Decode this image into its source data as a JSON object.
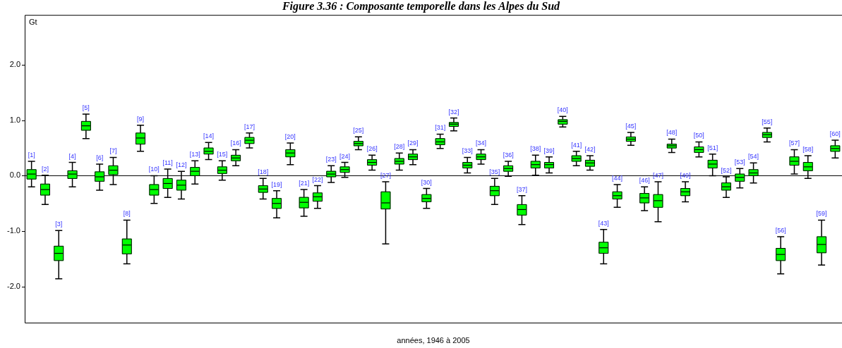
{
  "chart_data": {
    "type": "box",
    "title": "Figure 3.36 : Composante temporelle dans les Alpes du Sud",
    "xlabel": "années, 1946 à 2005",
    "ylabel": "Gt",
    "color": "#00ff00",
    "categories": [
      null,
      null,
      null,
      null,
      null,
      null,
      null,
      null,
      null,
      null,
      null,
      null,
      null,
      null,
      null,
      null,
      null,
      null,
      null,
      null,
      null,
      null,
      null,
      null,
      null,
      null,
      null,
      null,
      null,
      null,
      null,
      null,
      null,
      null,
      null,
      null,
      null,
      null,
      null,
      null,
      null,
      null,
      null,
      null,
      null,
      null,
      null,
      null,
      null,
      null,
      null,
      null,
      null,
      null,
      null,
      null,
      null,
      null,
      null,
      null
    ],
    "annotations": [
      "[1]",
      "[2]",
      "[3]",
      "[4]",
      "[5]",
      "[6]",
      "[7]",
      "[8]",
      "[9]",
      "[10]",
      "[11]",
      "[12]",
      "[13]",
      "[14]",
      "[15]",
      "[16]",
      "[17]",
      "[18]",
      "[19]",
      "[20]",
      "[21]",
      "[22]",
      "[23]",
      "[24]",
      "[25]",
      "[26]",
      "[27]",
      "[28]",
      "[29]",
      "[30]",
      "[31]",
      "[32]",
      "[33]",
      "[34]",
      "[35]",
      "[36]",
      "[37]",
      "[38]",
      "[39]",
      "[40]",
      "[41]",
      "[42]",
      "[43]",
      "[44]",
      "[45]",
      "[46]",
      "[47]",
      "[48]",
      "[49]",
      "[50]",
      "[51]",
      "[52]",
      "[53]",
      "[54]",
      "[55]",
      "[56]",
      "[57]",
      "[58]",
      "[59]",
      "[60]"
    ],
    "boxes": [
      {
        "low": -0.2,
        "q1": -0.06,
        "median": 0.03,
        "q3": 0.11,
        "high": 0.26
      },
      {
        "low": -0.52,
        "q1": -0.35,
        "median": -0.25,
        "q3": -0.15,
        "high": 0.01
      },
      {
        "low": -1.86,
        "q1": -1.53,
        "median": -1.4,
        "q3": -1.27,
        "high": -0.99
      },
      {
        "low": -0.2,
        "q1": -0.05,
        "median": 0.03,
        "q3": 0.09,
        "high": 0.24
      },
      {
        "low": 0.67,
        "q1": 0.82,
        "median": 0.9,
        "q3": 0.98,
        "high": 1.11
      },
      {
        "low": -0.26,
        "q1": -0.1,
        "median": -0.02,
        "q3": 0.07,
        "high": 0.21
      },
      {
        "low": -0.16,
        "q1": 0.02,
        "median": 0.1,
        "q3": 0.18,
        "high": 0.33
      },
      {
        "low": -1.59,
        "q1": -1.41,
        "median": -1.25,
        "q3": -1.14,
        "high": -0.8
      },
      {
        "low": 0.44,
        "q1": 0.57,
        "median": 0.68,
        "q3": 0.77,
        "high": 0.91
      },
      {
        "low": -0.5,
        "q1": -0.35,
        "median": -0.25,
        "q3": -0.16,
        "high": 0.0
      },
      {
        "low": -0.39,
        "q1": -0.23,
        "median": -0.14,
        "q3": -0.05,
        "high": 0.12
      },
      {
        "low": -0.42,
        "q1": -0.26,
        "median": -0.17,
        "q3": -0.08,
        "high": 0.08
      },
      {
        "low": -0.15,
        "q1": 0.0,
        "median": 0.08,
        "q3": 0.15,
        "high": 0.27
      },
      {
        "low": 0.29,
        "q1": 0.39,
        "median": 0.44,
        "q3": 0.5,
        "high": 0.6
      },
      {
        "low": -0.08,
        "q1": 0.04,
        "median": 0.1,
        "q3": 0.16,
        "high": 0.27
      },
      {
        "low": 0.18,
        "q1": 0.27,
        "median": 0.32,
        "q3": 0.37,
        "high": 0.47
      },
      {
        "low": 0.5,
        "q1": 0.58,
        "median": 0.64,
        "q3": 0.69,
        "high": 0.77
      },
      {
        "low": -0.42,
        "q1": -0.3,
        "median": -0.24,
        "q3": -0.18,
        "high": -0.05
      },
      {
        "low": -0.76,
        "q1": -0.59,
        "median": -0.5,
        "q3": -0.41,
        "high": -0.27
      },
      {
        "low": 0.2,
        "q1": 0.34,
        "median": 0.41,
        "q3": 0.47,
        "high": 0.59
      },
      {
        "low": -0.73,
        "q1": -0.58,
        "median": -0.48,
        "q3": -0.39,
        "high": -0.25
      },
      {
        "low": -0.59,
        "q1": -0.46,
        "median": -0.38,
        "q3": -0.31,
        "high": -0.18
      },
      {
        "low": -0.12,
        "q1": -0.02,
        "median": 0.03,
        "q3": 0.08,
        "high": 0.18
      },
      {
        "low": -0.03,
        "q1": 0.06,
        "median": 0.11,
        "q3": 0.16,
        "high": 0.24
      },
      {
        "low": 0.47,
        "q1": 0.54,
        "median": 0.58,
        "q3": 0.62,
        "high": 0.7
      },
      {
        "low": 0.1,
        "q1": 0.19,
        "median": 0.24,
        "q3": 0.29,
        "high": 0.37
      },
      {
        "low": -1.23,
        "q1": -0.6,
        "median": -0.49,
        "q3": -0.29,
        "high": -0.11
      },
      {
        "low": 0.1,
        "q1": 0.21,
        "median": 0.26,
        "q3": 0.31,
        "high": 0.41
      },
      {
        "low": 0.2,
        "q1": 0.29,
        "median": 0.34,
        "q3": 0.39,
        "high": 0.47
      },
      {
        "low": -0.59,
        "q1": -0.47,
        "median": -0.41,
        "q3": -0.34,
        "high": -0.23
      },
      {
        "low": 0.49,
        "q1": 0.56,
        "median": 0.61,
        "q3": 0.67,
        "high": 0.75
      },
      {
        "low": 0.81,
        "q1": 0.89,
        "median": 0.93,
        "q3": 0.96,
        "high": 1.04
      },
      {
        "low": 0.05,
        "q1": 0.14,
        "median": 0.19,
        "q3": 0.24,
        "high": 0.33
      },
      {
        "low": 0.21,
        "q1": 0.29,
        "median": 0.34,
        "q3": 0.39,
        "high": 0.47
      },
      {
        "low": -0.52,
        "q1": -0.36,
        "median": -0.27,
        "q3": -0.19,
        "high": -0.05
      },
      {
        "low": -0.01,
        "q1": 0.08,
        "median": 0.13,
        "q3": 0.18,
        "high": 0.26
      },
      {
        "low": -0.88,
        "q1": -0.71,
        "median": -0.61,
        "q3": -0.52,
        "high": -0.36
      },
      {
        "low": 0.01,
        "q1": 0.14,
        "median": 0.2,
        "q3": 0.26,
        "high": 0.37
      },
      {
        "low": 0.05,
        "q1": 0.14,
        "median": 0.2,
        "q3": 0.24,
        "high": 0.34
      },
      {
        "low": 0.88,
        "q1": 0.93,
        "median": 0.98,
        "q3": 1.01,
        "high": 1.07
      },
      {
        "low": 0.18,
        "q1": 0.26,
        "median": 0.31,
        "q3": 0.36,
        "high": 0.44
      },
      {
        "low": 0.1,
        "q1": 0.17,
        "median": 0.23,
        "q3": 0.28,
        "high": 0.36
      },
      {
        "low": -1.59,
        "q1": -1.4,
        "median": -1.3,
        "q3": -1.2,
        "high": -0.97
      },
      {
        "low": -0.57,
        "q1": -0.42,
        "median": -0.36,
        "q3": -0.29,
        "high": -0.16
      },
      {
        "low": 0.55,
        "q1": 0.62,
        "median": 0.66,
        "q3": 0.7,
        "high": 0.78
      },
      {
        "low": -0.63,
        "q1": -0.49,
        "median": -0.4,
        "q3": -0.32,
        "high": -0.2
      },
      {
        "low": -0.83,
        "q1": -0.57,
        "median": -0.45,
        "q3": -0.34,
        "high": -0.11
      },
      {
        "low": 0.42,
        "q1": 0.5,
        "median": 0.54,
        "q3": 0.57,
        "high": 0.66
      },
      {
        "low": -0.47,
        "q1": -0.36,
        "median": -0.29,
        "q3": -0.23,
        "high": -0.11
      },
      {
        "low": 0.34,
        "q1": 0.42,
        "median": 0.47,
        "q3": 0.52,
        "high": 0.61
      },
      {
        "low": 0.0,
        "q1": 0.14,
        "median": 0.21,
        "q3": 0.28,
        "high": 0.39
      },
      {
        "low": -0.39,
        "q1": -0.26,
        "median": -0.2,
        "q3": -0.13,
        "high": -0.02
      },
      {
        "low": -0.22,
        "q1": -0.1,
        "median": -0.03,
        "q3": 0.03,
        "high": 0.13
      },
      {
        "low": -0.13,
        "q1": 0.0,
        "median": 0.05,
        "q3": 0.11,
        "high": 0.23
      },
      {
        "low": 0.61,
        "q1": 0.69,
        "median": 0.74,
        "q3": 0.78,
        "high": 0.86
      },
      {
        "low": -1.77,
        "q1": -1.53,
        "median": -1.42,
        "q3": -1.31,
        "high": -1.1
      },
      {
        "low": 0.03,
        "q1": 0.19,
        "median": 0.26,
        "q3": 0.34,
        "high": 0.47
      },
      {
        "low": -0.05,
        "q1": 0.09,
        "median": 0.16,
        "q3": 0.24,
        "high": 0.36
      },
      {
        "low": -1.61,
        "q1": -1.39,
        "median": -1.24,
        "q3": -1.1,
        "high": -0.8
      },
      {
        "low": 0.32,
        "q1": 0.44,
        "median": 0.49,
        "q3": 0.54,
        "high": 0.64
      }
    ],
    "ylim": [
      -2.65,
      2.9
    ],
    "yticks": [
      {
        "value": -2,
        "label": "-2.0"
      },
      {
        "value": -1,
        "label": "-1.0"
      },
      {
        "value": 0,
        "label": "0.0"
      },
      {
        "value": 1,
        "label": "1.0"
      },
      {
        "value": 2,
        "label": "2.0"
      }
    ],
    "ref_lines": [
      {
        "axis": "y",
        "value": 0,
        "color": "#000000"
      }
    ]
  }
}
